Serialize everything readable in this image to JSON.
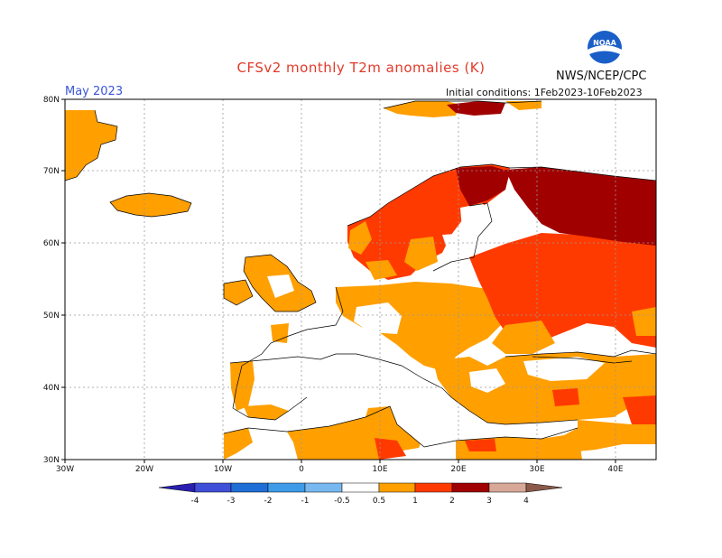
{
  "header": {
    "title": "CFSv2 monthly T2m anomalies (K)",
    "agency": "NWS/NCEP/CPC",
    "logo_text": "NOAA",
    "month": "May 2023",
    "init_conditions": "Initial conditions: 1Feb2023-10Feb2023"
  },
  "axes": {
    "lat_labels": [
      "80N",
      "70N",
      "60N",
      "50N",
      "40N",
      "30N"
    ],
    "lon_labels": [
      "30W",
      "20W",
      "10W",
      "0",
      "10E",
      "20E",
      "30E",
      "40E"
    ]
  },
  "colorbar": {
    "labels": [
      "-4",
      "-3",
      "-2",
      "-1",
      "-0.5",
      "0.5",
      "1",
      "2",
      "3",
      "4"
    ],
    "colors": [
      "#2a1fb0",
      "#3f4fd8",
      "#1e6ed6",
      "#3e9be8",
      "#78b8f0",
      "#ffffff",
      "#ff9f00",
      "#ff3a00",
      "#a00000",
      "#d7a797",
      "#8b5a4a"
    ]
  },
  "map_legend": {
    "palette_used": {
      "0.5-1": "#ff9f00",
      "1-2": "#ff3a00",
      "2-3": "#a00000",
      "neutral": "#ffffff"
    }
  }
}
